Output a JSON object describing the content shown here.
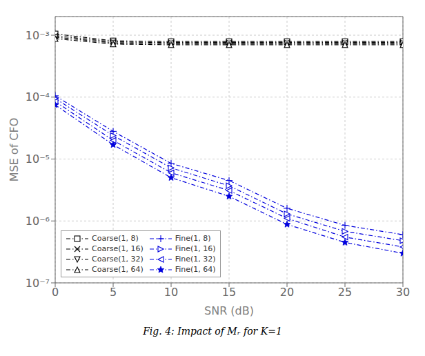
{
  "chart_data": {
    "type": "line",
    "caption": "Fig. 4: Impact of Mᵣ for K=1",
    "x_label": "SNR (dB)",
    "y_label": "MSE of CFO",
    "x": [
      0,
      5,
      10,
      15,
      20,
      25,
      30
    ],
    "series": [
      {
        "name": "Coarse(1, 8)",
        "color": "#000000",
        "marker": "square",
        "line_style": "dashdot",
        "values": [
          0.00105,
          0.00081,
          0.00079,
          0.00079,
          0.00079,
          0.00079,
          0.00079
        ]
      },
      {
        "name": "Coarse(1, 16)",
        "color": "#000000",
        "marker": "x",
        "line_style": "dashdot",
        "values": [
          0.00098,
          0.00078,
          0.00076,
          0.00076,
          0.00076,
          0.00076,
          0.00076
        ]
      },
      {
        "name": "Coarse(1, 32)",
        "color": "#000000",
        "marker": "triangle-down",
        "line_style": "dashdot",
        "values": [
          0.00093,
          0.00075,
          0.00073,
          0.00073,
          0.00073,
          0.00073,
          0.00073
        ]
      },
      {
        "name": "Coarse(1, 64)",
        "color": "#000000",
        "marker": "triangle-up",
        "line_style": "dashdot",
        "values": [
          0.00088,
          0.00072,
          0.0007,
          0.0007,
          0.0007,
          0.0007,
          0.0007
        ]
      },
      {
        "name": "Fine(1, 8)",
        "color": "#0000dd",
        "marker": "plus",
        "line_style": "dashdot",
        "values": [
          0.000105,
          2.8e-05,
          8.5e-06,
          4.5e-06,
          1.6e-06,
          8.5e-07,
          6e-07
        ]
      },
      {
        "name": "Fine(1, 16)",
        "color": "#0000dd",
        "marker": "triangle-right",
        "line_style": "dashdot",
        "values": [
          9.5e-05,
          2.4e-05,
          7.2e-06,
          3.7e-06,
          1.3e-06,
          6.8e-07,
          4.8e-07
        ]
      },
      {
        "name": "Fine(1, 32)",
        "color": "#0000dd",
        "marker": "triangle-left",
        "line_style": "dashdot",
        "values": [
          8.5e-05,
          2e-05,
          6e-06,
          3.1e-06,
          1.1e-06,
          5.5e-07,
          3.8e-07
        ]
      },
      {
        "name": "Fine(1, 64)",
        "color": "#0000dd",
        "marker": "star",
        "line_style": "dashdot",
        "values": [
          7.5e-05,
          1.7e-05,
          5e-06,
          2.5e-06,
          8.8e-07,
          4.5e-07,
          3e-07
        ]
      }
    ],
    "xlim": [
      0,
      30
    ],
    "xticks": [
      0,
      5,
      10,
      15,
      20,
      25,
      30
    ],
    "ylim": [
      1e-07,
      0.002
    ],
    "yticks": [
      {
        "value": 1e-07,
        "label": "10⁻⁷"
      },
      {
        "value": 1e-06,
        "label": "10⁻⁶"
      },
      {
        "value": 1e-05,
        "label": "10⁻⁵"
      },
      {
        "value": 0.0001,
        "label": "10⁻⁴"
      },
      {
        "value": 0.001,
        "label": "10⁻³"
      }
    ],
    "log": "y",
    "grid": true,
    "legend": "lower left"
  }
}
